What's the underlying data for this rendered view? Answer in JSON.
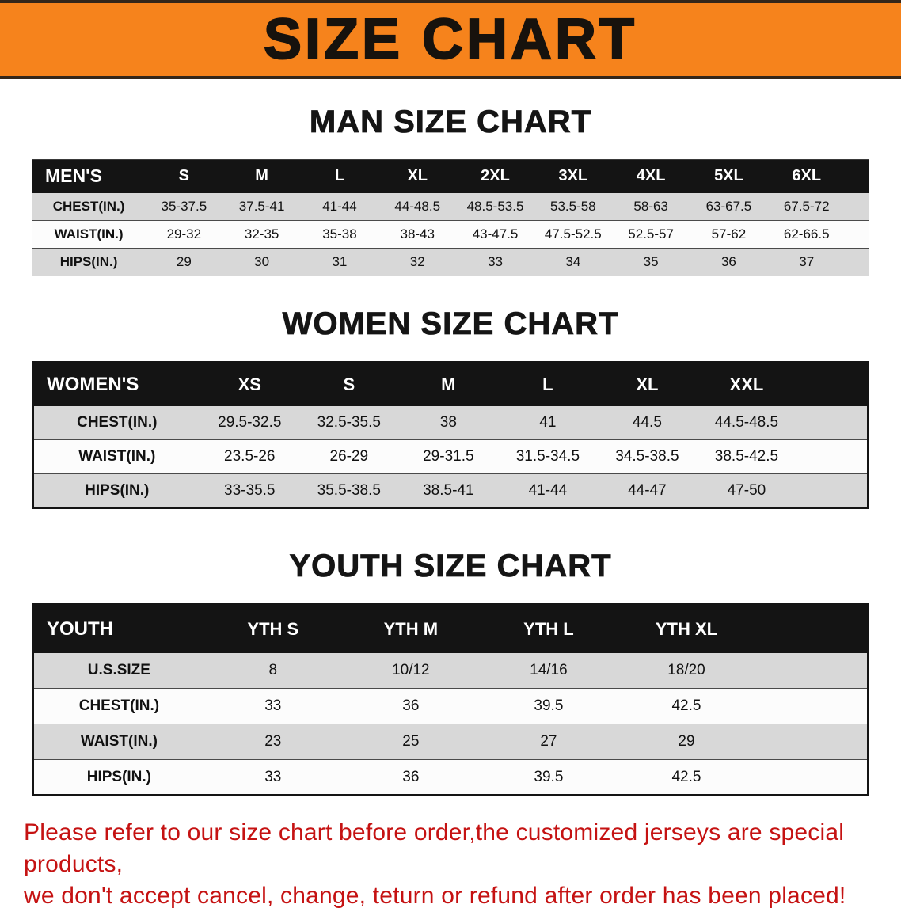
{
  "banner": {
    "title": "SIZE CHART"
  },
  "sections": [
    {
      "heading": "MAN SIZE CHART",
      "table": {
        "header": [
          "MEN'S",
          "S",
          "M",
          "L",
          "XL",
          "2XL",
          "3XL",
          "4XL",
          "5XL",
          "6XL"
        ],
        "rows": [
          [
            "CHEST(IN.)",
            "35-37.5",
            "37.5-41",
            "41-44",
            "44-48.5",
            "48.5-53.5",
            "53.5-58",
            "58-63",
            "63-67.5",
            "67.5-72"
          ],
          [
            "WAIST(IN.)",
            "29-32",
            "32-35",
            "35-38",
            "38-43",
            "43-47.5",
            "47.5-52.5",
            "52.5-57",
            "57-62",
            "62-66.5"
          ],
          [
            "HIPS(IN.)",
            "29",
            "30",
            "31",
            "32",
            "33",
            "34",
            "35",
            "36",
            "37"
          ]
        ]
      }
    },
    {
      "heading": "WOMEN SIZE CHART",
      "table": {
        "header": [
          "WOMEN'S",
          "XS",
          "S",
          "M",
          "L",
          "XL",
          "XXL"
        ],
        "rows": [
          [
            "CHEST(IN.)",
            "29.5-32.5",
            "32.5-35.5",
            "38",
            "41",
            "44.5",
            "44.5-48.5"
          ],
          [
            "WAIST(IN.)",
            "23.5-26",
            "26-29",
            "29-31.5",
            "31.5-34.5",
            "34.5-38.5",
            "38.5-42.5"
          ],
          [
            "HIPS(IN.)",
            "33-35.5",
            "35.5-38.5",
            "38.5-41",
            "41-44",
            "44-47",
            "47-50"
          ]
        ]
      }
    },
    {
      "heading": "YOUTH SIZE CHART",
      "table": {
        "header": [
          "YOUTH",
          "YTH S",
          "YTH M",
          "YTH L",
          "YTH XL"
        ],
        "rows": [
          [
            "U.S.SIZE",
            "8",
            "10/12",
            "14/16",
            "18/20"
          ],
          [
            "CHEST(IN.)",
            "33",
            "36",
            "39.5",
            "42.5"
          ],
          [
            "WAIST(IN.)",
            "23",
            "25",
            "27",
            "29"
          ],
          [
            "HIPS(IN.)",
            "33",
            "36",
            "39.5",
            "42.5"
          ]
        ]
      }
    }
  ],
  "disclaimer": {
    "line1": "Please refer to our size chart before order,the customized jerseys are special products,",
    "line2": "we don't accept cancel, change, teturn or refund after order has been placed!"
  },
  "colors": {
    "banner_orange": "#f6831c",
    "table_header_black": "#141414",
    "row_gray": "#d8d8d8",
    "disclaimer_red": "#c51212"
  }
}
